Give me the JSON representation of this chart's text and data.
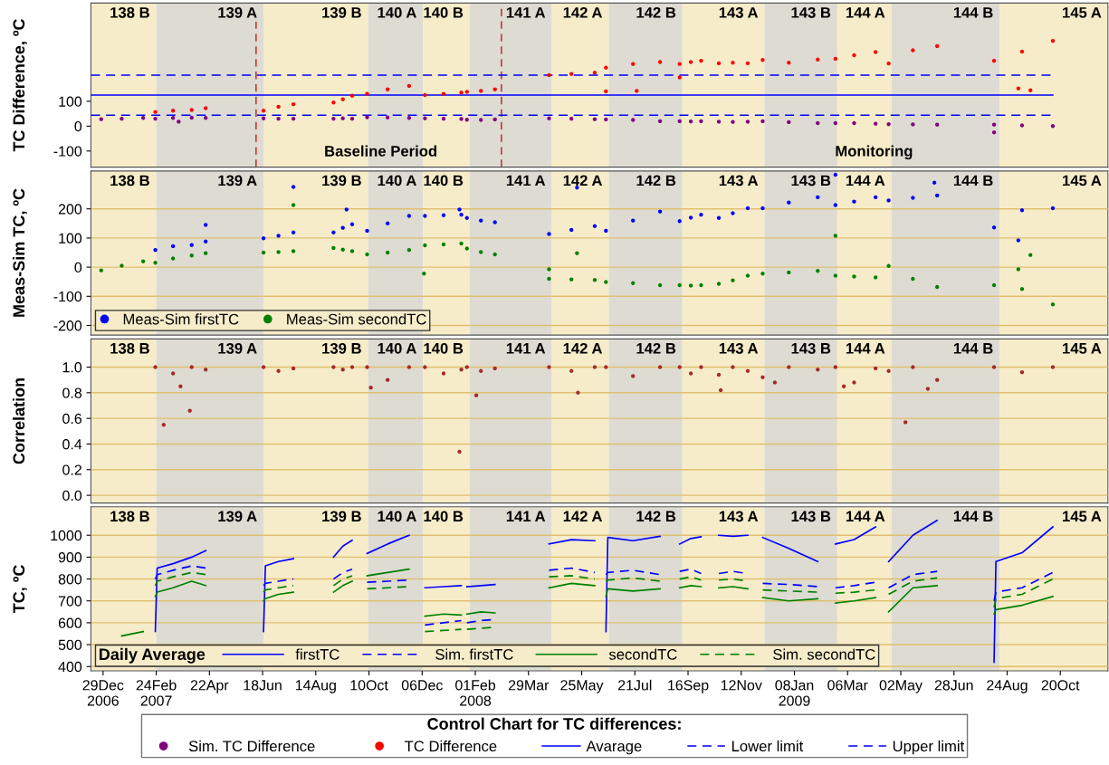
{
  "chart_data": [
    {
      "type": "scatter",
      "ylabel": "TC Difference, ºC",
      "xlim": [
        "2006-12-16",
        "2009-12-10"
      ],
      "ylim": [
        -165,
        495
      ],
      "yticks": [
        -100,
        0,
        100
      ],
      "tick_labels": "y",
      "legend": "bottom",
      "legend_title": "Control Chart for TC differences:",
      "series": [
        {
          "name": "Sim. TC Difference",
          "type": "scatter",
          "marker": "circle",
          "color": "#800080",
          "x": [
            "2006-12-27",
            "2007-01-18",
            "2007-02-10",
            "2007-02-23",
            "2007-03-14",
            "2007-04-03",
            "2007-04-18",
            "2007-06-19",
            "2007-07-05",
            "2007-07-21",
            "2007-09-02",
            "2007-09-12",
            "2007-09-22",
            "2007-10-08",
            "2007-10-30",
            "2007-11-22",
            "2007-12-09",
            "2007-12-29",
            "2008-01-17",
            "2008-01-23",
            "2008-02-07",
            "2008-02-22",
            "2008-04-20",
            "2008-05-14",
            "2008-06-08",
            "2008-06-20",
            "2008-07-19",
            "2008-08-17",
            "2008-09-07",
            "2008-09-19",
            "2008-09-30",
            "2008-10-19",
            "2008-11-03",
            "2008-11-19",
            "2008-12-05",
            "2009-01-02",
            "2009-02-02",
            "2009-02-21",
            "2009-03-13",
            "2009-04-05",
            "2009-04-19",
            "2009-05-15",
            "2009-06-10",
            "2009-08-10",
            "2009-09-09",
            "2009-10-12",
            "2007-03-20",
            "2009-08-10"
          ],
          "values": [
            28,
            30,
            33,
            30,
            33,
            34,
            33,
            31,
            30,
            30,
            30,
            31,
            30,
            36,
            35,
            33,
            31,
            30,
            29,
            26,
            25,
            27,
            31,
            30,
            28,
            27,
            25,
            20,
            20,
            19,
            20,
            18,
            17,
            18,
            20,
            16,
            12,
            12,
            12,
            10,
            8,
            7,
            6,
            6,
            3,
            0,
            18,
            -25
          ]
        },
        {
          "name": "TC Difference",
          "type": "scatter",
          "marker": "circle",
          "color": "#ff0000",
          "x": [
            "2007-02-23",
            "2007-03-14",
            "2007-04-03",
            "2007-04-18",
            "2007-06-19",
            "2007-07-05",
            "2007-07-21",
            "2007-09-02",
            "2007-09-12",
            "2007-09-22",
            "2007-10-08",
            "2007-10-30",
            "2007-11-22",
            "2007-12-09",
            "2007-12-29",
            "2008-01-17",
            "2008-01-23",
            "2008-02-07",
            "2008-02-22",
            "2008-04-20",
            "2008-05-14",
            "2008-06-08",
            "2008-06-20",
            "2008-07-19",
            "2008-08-17",
            "2008-09-07",
            "2008-09-19",
            "2008-09-30",
            "2008-10-19",
            "2008-11-03",
            "2008-11-19",
            "2008-12-05",
            "2009-01-02",
            "2009-02-02",
            "2009-02-21",
            "2009-03-13",
            "2009-04-05",
            "2009-04-19",
            "2009-05-15",
            "2009-06-10",
            "2009-08-10",
            "2009-09-09",
            "2009-10-12",
            "2008-06-20",
            "2008-07-23",
            "2008-09-07",
            "2009-09-05",
            "2009-09-18"
          ],
          "values": [
            57,
            62,
            65,
            72,
            62,
            78,
            88,
            95,
            108,
            122,
            130,
            148,
            162,
            125,
            130,
            135,
            138,
            142,
            148,
            205,
            210,
            215,
            235,
            250,
            258,
            250,
            258,
            263,
            253,
            255,
            253,
            266,
            255,
            268,
            271,
            285,
            298,
            252,
            305,
            322,
            263,
            300,
            343,
            140,
            142,
            196,
            152,
            144
          ]
        },
        {
          "name": "Avarage",
          "type": "line",
          "line_style": "solid",
          "color": "#0000ff",
          "x": [
            "2006-12-16",
            "2009-10-12"
          ],
          "values": [
            125,
            125
          ]
        },
        {
          "name": "Lower limit",
          "type": "line",
          "line_style": "dashed",
          "color": "#0000ff",
          "x": [
            "2006-12-16",
            "2009-10-12"
          ],
          "values": [
            44,
            44
          ]
        },
        {
          "name": "Upper limit",
          "type": "line",
          "line_style": "dashed",
          "color": "#0000ff",
          "x": [
            "2006-12-16",
            "2009-10-12"
          ],
          "values": [
            205,
            205
          ]
        }
      ],
      "ref_lines": [
        {
          "axis": "x",
          "value": "2007-06-11",
          "color": "#b22222",
          "line_style": "dashed"
        },
        {
          "axis": "x",
          "value": "2008-02-29",
          "color": "#b22222",
          "line_style": "dashed"
        }
      ],
      "annotations": [
        "Baseline Period",
        "Monitoring"
      ],
      "bands": [
        {
          "axis": "x",
          "from": "2006-12-16",
          "to": "2007-02-24",
          "label": "138 B",
          "color": "#f7ecc9"
        },
        {
          "axis": "x",
          "from": "2007-02-24",
          "to": "2007-06-19",
          "label": "139 A",
          "color": "#dddbd2"
        },
        {
          "axis": "x",
          "from": "2007-06-19",
          "to": "2007-10-09",
          "label": "139 B",
          "color": "#f7ecc9"
        },
        {
          "axis": "x",
          "from": "2007-10-09",
          "to": "2007-12-07",
          "label": "140 A",
          "color": "#dddbd2"
        },
        {
          "axis": "x",
          "from": "2007-12-07",
          "to": "2008-01-26",
          "label": "140 B",
          "color": "#f7ecc9"
        },
        {
          "axis": "x",
          "from": "2008-01-26",
          "to": "2008-04-23",
          "label": "141 A",
          "color": "#dddbd2"
        },
        {
          "axis": "x",
          "from": "2008-04-23",
          "to": "2008-06-23",
          "label": "142 A",
          "color": "#f7ecc9"
        },
        {
          "axis": "x",
          "from": "2008-06-23",
          "to": "2008-09-10",
          "label": "142 B",
          "color": "#dddbd2"
        },
        {
          "axis": "x",
          "from": "2008-09-10",
          "to": "2008-12-07",
          "label": "143 A",
          "color": "#f7ecc9"
        },
        {
          "axis": "x",
          "from": "2008-12-07",
          "to": "2009-02-23",
          "label": "143 B",
          "color": "#dddbd2"
        },
        {
          "axis": "x",
          "from": "2009-02-23",
          "to": "2009-04-22",
          "label": "144 A",
          "color": "#f7ecc9"
        },
        {
          "axis": "x",
          "from": "2009-04-22",
          "to": "2009-08-16",
          "label": "144 B",
          "color": "#dddbd2"
        },
        {
          "axis": "x",
          "from": "2009-08-16",
          "to": "2009-12-10",
          "label": "145 A",
          "color": "#f7ecc9"
        }
      ]
    },
    {
      "type": "scatter",
      "ylabel": "Meas-Sim TC, ºC",
      "xlim": [
        "2006-12-16",
        "2009-12-10"
      ],
      "ylim": [
        -233,
        330
      ],
      "yticks": [
        -200,
        -100,
        0,
        100,
        200
      ],
      "tick_labels": "y",
      "grid": "y",
      "marker": "circle",
      "legend": "lower left",
      "series": [
        {
          "name": "Meas-Sim firstTC",
          "color": "#0000ff",
          "x": [
            "2007-02-23",
            "2007-03-14",
            "2007-04-03",
            "2007-04-18",
            "2007-06-19",
            "2007-07-05",
            "2007-07-21",
            "2007-09-02",
            "2007-09-12",
            "2007-09-22",
            "2007-10-08",
            "2007-10-30",
            "2007-11-22",
            "2007-12-09",
            "2007-12-29",
            "2008-01-17",
            "2008-01-23",
            "2008-02-07",
            "2008-02-22",
            "2008-04-20",
            "2008-05-14",
            "2008-06-08",
            "2008-06-20",
            "2008-07-19",
            "2008-08-17",
            "2008-09-07",
            "2008-09-19",
            "2008-09-30",
            "2008-10-19",
            "2008-11-03",
            "2008-11-19",
            "2008-12-05",
            "2009-01-02",
            "2009-02-02",
            "2009-02-21",
            "2009-03-13",
            "2009-04-05",
            "2009-04-19",
            "2009-05-15",
            "2009-06-10",
            "2009-08-10",
            "2009-09-09",
            "2009-10-12",
            "2007-04-18",
            "2007-07-21",
            "2007-09-16",
            "2008-01-15",
            "2008-05-20",
            "2009-02-21",
            "2009-06-07",
            "2009-09-05"
          ],
          "values": [
            59,
            72,
            76,
            88,
            99,
            108,
            119,
            119,
            135,
            147,
            125,
            150,
            176,
            176,
            178,
            180,
            169,
            160,
            154,
            114,
            128,
            141,
            125,
            160,
            191,
            158,
            170,
            180,
            169,
            185,
            202,
            202,
            222,
            240,
            213,
            225,
            240,
            229,
            238,
            246,
            136,
            195,
            202,
            145,
            275,
            198,
            198,
            273,
            317,
            290,
            92
          ]
        },
        {
          "name": "Meas-Sim secondTC",
          "color": "#008000",
          "x": [
            "2006-12-27",
            "2007-01-18",
            "2007-02-10",
            "2007-02-23",
            "2007-03-14",
            "2007-04-03",
            "2007-04-18",
            "2007-06-19",
            "2007-07-05",
            "2007-07-21",
            "2007-09-02",
            "2007-09-12",
            "2007-09-22",
            "2007-10-08",
            "2007-10-30",
            "2007-11-22",
            "2007-12-09",
            "2007-12-29",
            "2008-01-17",
            "2008-01-23",
            "2008-02-07",
            "2008-02-22",
            "2008-04-20",
            "2008-05-14",
            "2008-06-08",
            "2008-06-20",
            "2008-07-19",
            "2008-08-17",
            "2008-09-07",
            "2008-09-19",
            "2008-09-30",
            "2008-10-19",
            "2008-11-03",
            "2008-11-19",
            "2008-12-05",
            "2009-01-02",
            "2009-02-02",
            "2009-02-21",
            "2009-03-13",
            "2009-04-05",
            "2009-04-19",
            "2009-05-15",
            "2009-06-10",
            "2009-08-10",
            "2009-09-09",
            "2009-10-12",
            "2007-07-21",
            "2007-12-08",
            "2008-04-20",
            "2008-05-20",
            "2009-02-21",
            "2009-09-05",
            "2009-09-18"
          ],
          "values": [
            -11,
            5,
            20,
            15,
            30,
            40,
            48,
            50,
            52,
            55,
            66,
            60,
            55,
            44,
            50,
            59,
            75,
            78,
            81,
            64,
            52,
            44,
            -40,
            -42,
            -44,
            -51,
            -55,
            -62,
            -62,
            -63,
            -62,
            -57,
            -45,
            -29,
            -22,
            -18,
            -13,
            -29,
            -32,
            -35,
            4,
            -40,
            -68,
            -62,
            -75,
            -128,
            213,
            -22,
            -7,
            48,
            108,
            -7,
            42
          ]
        }
      ],
      "bands": [
        {
          "axis": "x",
          "from": "2006-12-16",
          "to": "2007-02-24",
          "label": "138 B",
          "color": "#f7ecc9"
        },
        {
          "axis": "x",
          "from": "2007-02-24",
          "to": "2007-06-19",
          "label": "139 A",
          "color": "#dddbd2"
        },
        {
          "axis": "x",
          "from": "2007-06-19",
          "to": "2007-10-09",
          "label": "139 B",
          "color": "#f7ecc9"
        },
        {
          "axis": "x",
          "from": "2007-10-09",
          "to": "2007-12-07",
          "label": "140 A",
          "color": "#dddbd2"
        },
        {
          "axis": "x",
          "from": "2007-12-07",
          "to": "2008-01-26",
          "label": "140 B",
          "color": "#f7ecc9"
        },
        {
          "axis": "x",
          "from": "2008-01-26",
          "to": "2008-04-23",
          "label": "141 A",
          "color": "#dddbd2"
        },
        {
          "axis": "x",
          "from": "2008-04-23",
          "to": "2008-06-23",
          "label": "142 A",
          "color": "#f7ecc9"
        },
        {
          "axis": "x",
          "from": "2008-06-23",
          "to": "2008-09-10",
          "label": "142 B",
          "color": "#dddbd2"
        },
        {
          "axis": "x",
          "from": "2008-09-10",
          "to": "2008-12-07",
          "label": "143 A",
          "color": "#f7ecc9"
        },
        {
          "axis": "x",
          "from": "2008-12-07",
          "to": "2009-02-23",
          "label": "143 B",
          "color": "#dddbd2"
        },
        {
          "axis": "x",
          "from": "2009-02-23",
          "to": "2009-04-22",
          "label": "144 A",
          "color": "#f7ecc9"
        },
        {
          "axis": "x",
          "from": "2009-04-22",
          "to": "2009-08-16",
          "label": "144 B",
          "color": "#dddbd2"
        },
        {
          "axis": "x",
          "from": "2009-08-16",
          "to": "2009-12-10",
          "label": "145 A",
          "color": "#f7ecc9"
        }
      ]
    },
    {
      "type": "scatter",
      "ylabel": "Correlation",
      "xlim": [
        "2006-12-16",
        "2009-12-10"
      ],
      "ylim": [
        -0.06,
        1.22
      ],
      "yticks": [
        {
          "value": 0,
          "label": "0.0"
        },
        {
          "value": 0.2,
          "label": "0.2"
        },
        {
          "value": 0.4,
          "label": "0.4"
        },
        {
          "value": 0.6,
          "label": "0.6"
        },
        {
          "value": 0.8,
          "label": "0.8"
        },
        {
          "value": 1,
          "label": "1.0"
        }
      ],
      "tick_labels": "y",
      "grid": "y",
      "marker": "circle",
      "series": [
        {
          "color": "#a52a2a",
          "x": [
            "2007-02-23",
            "2007-03-14",
            "2007-04-03",
            "2007-04-18",
            "2007-06-19",
            "2007-07-05",
            "2007-07-21",
            "2007-09-02",
            "2007-09-12",
            "2007-09-22",
            "2007-10-08",
            "2007-10-30",
            "2007-11-22",
            "2007-12-09",
            "2007-12-29",
            "2008-01-17",
            "2008-01-23",
            "2008-02-07",
            "2008-02-22",
            "2008-04-20",
            "2008-05-14",
            "2008-06-08",
            "2008-06-20",
            "2008-07-19",
            "2008-08-17",
            "2008-09-07",
            "2008-09-19",
            "2008-09-30",
            "2008-10-19",
            "2008-11-03",
            "2008-11-19",
            "2008-12-05",
            "2009-01-02",
            "2009-02-02",
            "2009-02-21",
            "2009-03-13",
            "2009-04-05",
            "2009-04-19",
            "2009-05-15",
            "2009-06-10",
            "2009-08-10",
            "2009-09-09",
            "2009-10-12",
            "2007-03-04",
            "2007-04-01",
            "2007-03-22",
            "2007-10-12",
            "2008-01-15",
            "2008-02-02",
            "2008-05-21",
            "2008-10-21",
            "2008-12-18",
            "2009-03-02",
            "2009-05-07",
            "2009-05-31"
          ],
          "values": [
            1.0,
            0.95,
            1.0,
            0.98,
            1.0,
            0.97,
            0.99,
            1.0,
            0.98,
            1.0,
            1.0,
            0.9,
            1.0,
            1.0,
            0.95,
            0.98,
            1.0,
            0.97,
            0.99,
            1.0,
            0.97,
            1.0,
            1.0,
            0.93,
            1.0,
            1.0,
            0.95,
            1.0,
            0.94,
            1.0,
            0.97,
            0.92,
            1.0,
            0.98,
            1.0,
            0.88,
            0.99,
            0.97,
            1.0,
            0.9,
            1.0,
            0.96,
            1.0,
            0.55,
            0.66,
            0.85,
            0.84,
            0.34,
            0.78,
            0.8,
            0.82,
            0.88,
            0.85,
            0.57,
            0.83
          ]
        }
      ],
      "bands": [
        {
          "axis": "x",
          "from": "2006-12-16",
          "to": "2007-02-24",
          "label": "138 B",
          "color": "#f7ecc9"
        },
        {
          "axis": "x",
          "from": "2007-02-24",
          "to": "2007-06-19",
          "label": "139 A",
          "color": "#dddbd2"
        },
        {
          "axis": "x",
          "from": "2007-06-19",
          "to": "2007-10-09",
          "label": "139 B",
          "color": "#f7ecc9"
        },
        {
          "axis": "x",
          "from": "2007-10-09",
          "to": "2007-12-07",
          "label": "140 A",
          "color": "#dddbd2"
        },
        {
          "axis": "x",
          "from": "2007-12-07",
          "to": "2008-01-26",
          "label": "140 B",
          "color": "#f7ecc9"
        },
        {
          "axis": "x",
          "from": "2008-01-26",
          "to": "2008-04-23",
          "label": "141 A",
          "color": "#dddbd2"
        },
        {
          "axis": "x",
          "from": "2008-04-23",
          "to": "2008-06-23",
          "label": "142 A",
          "color": "#f7ecc9"
        },
        {
          "axis": "x",
          "from": "2008-06-23",
          "to": "2008-09-10",
          "label": "142 B",
          "color": "#dddbd2"
        },
        {
          "axis": "x",
          "from": "2008-09-10",
          "to": "2008-12-07",
          "label": "143 A",
          "color": "#f7ecc9"
        },
        {
          "axis": "x",
          "from": "2008-12-07",
          "to": "2009-02-23",
          "label": "143 B",
          "color": "#dddbd2"
        },
        {
          "axis": "x",
          "from": "2009-02-23",
          "to": "2009-04-22",
          "label": "144 A",
          "color": "#f7ecc9"
        },
        {
          "axis": "x",
          "from": "2009-04-22",
          "to": "2009-08-16",
          "label": "144 B",
          "color": "#dddbd2"
        },
        {
          "axis": "x",
          "from": "2009-08-16",
          "to": "2009-12-10",
          "label": "145 A",
          "color": "#f7ecc9"
        }
      ]
    },
    {
      "type": "line",
      "ylabel": "TC, ºC",
      "xlim": [
        "2006-12-16",
        "2009-12-10"
      ],
      "ylim": [
        380,
        1130
      ],
      "yticks": [
        400,
        500,
        600,
        700,
        800,
        900,
        1000
      ],
      "grid": "y",
      "legend": "lower left",
      "legend_title": "Daily Average",
      "xticks": [
        {
          "value": "2006-12-29",
          "label": "29Dec\n2006"
        },
        {
          "value": "2007-02-24",
          "label": "24Feb\n2007"
        },
        {
          "value": "2007-04-22",
          "label": "22Apr"
        },
        {
          "value": "2007-06-18",
          "label": "18Jun"
        },
        {
          "value": "2007-08-14",
          "label": "14Aug"
        },
        {
          "value": "2007-10-10",
          "label": "10Oct"
        },
        {
          "value": "2007-12-06",
          "label": "06Dec"
        },
        {
          "value": "2008-02-01",
          "label": "01Feb\n2008"
        },
        {
          "value": "2008-03-29",
          "label": "29Mar"
        },
        {
          "value": "2008-05-25",
          "label": "25May"
        },
        {
          "value": "2008-07-21",
          "label": "21Jul"
        },
        {
          "value": "2008-09-16",
          "label": "16Sep"
        },
        {
          "value": "2008-11-12",
          "label": "12Nov"
        },
        {
          "value": "2009-01-08",
          "label": "08Jan\n2009"
        },
        {
          "value": "2009-03-06",
          "label": "06Mar"
        },
        {
          "value": "2009-05-02",
          "label": "02May"
        },
        {
          "value": "2009-06-28",
          "label": "28Jun"
        },
        {
          "value": "2009-08-24",
          "label": "24Aug"
        },
        {
          "value": "2009-10-20",
          "label": "20Oct"
        }
      ],
      "x": [
        "2007-01-18",
        "2007-02-10",
        "2007-02-17",
        "2007-02-23",
        "2007-02-25",
        "2007-03-14",
        "2007-04-03",
        "2007-04-18",
        "2007-05-20",
        "2007-06-19",
        "2007-06-21",
        "2007-07-05",
        "2007-07-21",
        "2007-08-10",
        "2007-09-02",
        "2007-09-12",
        "2007-09-22",
        "2007-09-30",
        "2007-10-08",
        "2007-10-30",
        "2007-11-22",
        "2007-12-01",
        "2007-12-09",
        "2007-12-29",
        "2008-01-17",
        "2008-01-20",
        "2008-01-23",
        "2008-02-07",
        "2008-02-22",
        "2008-03-20",
        "2008-04-20",
        "2008-05-14",
        "2008-06-08",
        "2008-06-14",
        "2008-06-20",
        "2008-06-22",
        "2008-07-19",
        "2008-08-17",
        "2008-08-28",
        "2008-09-07",
        "2008-09-19",
        "2008-09-30",
        "2008-10-10",
        "2008-10-19",
        "2008-11-03",
        "2008-11-19",
        "2008-11-27",
        "2008-12-05",
        "2009-01-02",
        "2009-02-02",
        "2009-02-12",
        "2009-02-21",
        "2009-03-13",
        "2009-04-05",
        "2009-04-12",
        "2009-04-19",
        "2009-05-15",
        "2009-06-10",
        "2009-07-10",
        "2009-08-10",
        "2009-08-12",
        "2009-09-09",
        "2009-10-12"
      ],
      "series": [
        {
          "name": "firstTC",
          "color": "#0000ff",
          "line_style": "solid",
          "values": [
            null,
            null,
            null,
            560,
            850,
            870,
            900,
            930,
            null,
            560,
            860,
            880,
            893,
            null,
            900,
            950,
            977,
            null,
            917,
            960,
            1000,
            null,
            760,
            765,
            770,
            null,
            765,
            770,
            775,
            null,
            960,
            980,
            975,
            null,
            560,
            990,
            975,
            995,
            null,
            960,
            985,
            993,
            null,
            1000,
            995,
            1000,
            null,
            990,
            940,
            880,
            null,
            960,
            980,
            1038,
            null,
            880,
            1000,
            1068,
            null,
            420,
            880,
            920,
            1038
          ]
        },
        {
          "name": "Sim. firstTC",
          "color": "#0000ff",
          "line_style": "dashed",
          "values": [
            null,
            null,
            null,
            800,
            820,
            840,
            860,
            850,
            null,
            770,
            780,
            790,
            800,
            null,
            800,
            830,
            845,
            null,
            785,
            790,
            795,
            null,
            590,
            600,
            610,
            null,
            600,
            610,
            615,
            null,
            840,
            850,
            830,
            null,
            820,
            830,
            840,
            820,
            null,
            835,
            845,
            825,
            null,
            825,
            835,
            825,
            null,
            780,
            775,
            765,
            null,
            760,
            770,
            785,
            null,
            760,
            820,
            835,
            null,
            700,
            740,
            760,
            830
          ]
        },
        {
          "name": "secondTC",
          "color": "#008000",
          "line_style": "solid",
          "values": [
            540,
            560,
            null,
            720,
            740,
            760,
            790,
            770,
            null,
            700,
            710,
            730,
            740,
            null,
            740,
            770,
            790,
            null,
            815,
            830,
            845,
            null,
            630,
            640,
            635,
            null,
            640,
            650,
            645,
            null,
            760,
            780,
            770,
            null,
            720,
            755,
            745,
            755,
            null,
            760,
            770,
            765,
            null,
            760,
            765,
            755,
            null,
            715,
            700,
            710,
            null,
            690,
            700,
            715,
            null,
            650,
            760,
            770,
            null,
            640,
            660,
            680,
            720
          ]
        },
        {
          "name": "Sim. secondTC",
          "color": "#008000",
          "line_style": "dashed",
          "values": [
            null,
            null,
            null,
            770,
            790,
            810,
            830,
            820,
            null,
            740,
            750,
            760,
            770,
            null,
            770,
            800,
            815,
            null,
            755,
            760,
            765,
            null,
            560,
            565,
            570,
            null,
            570,
            575,
            580,
            null,
            810,
            815,
            800,
            null,
            790,
            795,
            805,
            790,
            null,
            800,
            810,
            795,
            null,
            795,
            800,
            790,
            null,
            750,
            745,
            740,
            null,
            735,
            740,
            750,
            null,
            730,
            790,
            805,
            null,
            670,
            710,
            730,
            800
          ]
        }
      ],
      "bands": [
        {
          "axis": "x",
          "from": "2006-12-16",
          "to": "2007-02-24",
          "label": "138 B",
          "color": "#f7ecc9"
        },
        {
          "axis": "x",
          "from": "2007-02-24",
          "to": "2007-06-19",
          "label": "139 A",
          "color": "#dddbd2"
        },
        {
          "axis": "x",
          "from": "2007-06-19",
          "to": "2007-10-09",
          "label": "139 B",
          "color": "#f7ecc9"
        },
        {
          "axis": "x",
          "from": "2007-10-09",
          "to": "2007-12-07",
          "label": "140 A",
          "color": "#dddbd2"
        },
        {
          "axis": "x",
          "from": "2007-12-07",
          "to": "2008-01-26",
          "label": "140 B",
          "color": "#f7ecc9"
        },
        {
          "axis": "x",
          "from": "2008-01-26",
          "to": "2008-04-23",
          "label": "141 A",
          "color": "#dddbd2"
        },
        {
          "axis": "x",
          "from": "2008-04-23",
          "to": "2008-06-23",
          "label": "142 A",
          "color": "#f7ecc9"
        },
        {
          "axis": "x",
          "from": "2008-06-23",
          "to": "2008-09-10",
          "label": "142 B",
          "color": "#dddbd2"
        },
        {
          "axis": "x",
          "from": "2008-09-10",
          "to": "2008-12-07",
          "label": "143 A",
          "color": "#f7ecc9"
        },
        {
          "axis": "x",
          "from": "2008-12-07",
          "to": "2009-02-23",
          "label": "143 B",
          "color": "#dddbd2"
        },
        {
          "axis": "x",
          "from": "2009-02-23",
          "to": "2009-04-22",
          "label": "144 A",
          "color": "#f7ecc9"
        },
        {
          "axis": "x",
          "from": "2009-04-22",
          "to": "2009-08-16",
          "label": "144 B",
          "color": "#dddbd2"
        },
        {
          "axis": "x",
          "from": "2009-08-16",
          "to": "2009-12-10",
          "label": "145 A",
          "color": "#f7ecc9"
        }
      ]
    }
  ]
}
